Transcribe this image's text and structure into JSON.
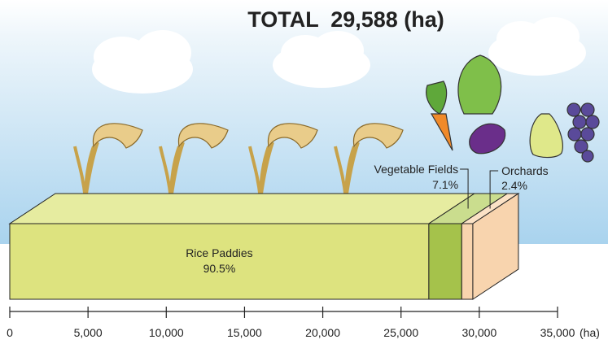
{
  "chart_data": {
    "type": "stacked-bar-3d",
    "title": "TOTAL  29,588 (ha)",
    "x_unit": "(ha)",
    "xlim": [
      0,
      35000
    ],
    "xticks": [
      0,
      {
        "value": 5000,
        "label": "5,000"
      },
      {
        "value": 10000,
        "label": "10,000"
      },
      {
        "value": 15000,
        "label": "15,000"
      },
      {
        "value": 20000,
        "label": "20,000"
      },
      {
        "value": 25000,
        "label": "25,000"
      },
      {
        "value": 30000,
        "label": "30,000"
      },
      {
        "value": 35000,
        "label": "35,000"
      }
    ],
    "series": [
      {
        "name": "Rice Paddies",
        "values": [
          26777
        ],
        "share_labels": [
          "90.5%"
        ],
        "color": "#dde37f",
        "top_color": "#e6eca0"
      },
      {
        "name": "Vegetable Fields",
        "values": [
          2101
        ],
        "share_labels": [
          "7.1%"
        ],
        "color": "#a5c24b",
        "top_color": "#cadd8e"
      },
      {
        "name": "Orchards",
        "values": [
          710
        ],
        "share_labels": [
          "2.4%"
        ],
        "color": "#f8d4ae",
        "top_color": "#fbe2c6"
      }
    ]
  }
}
